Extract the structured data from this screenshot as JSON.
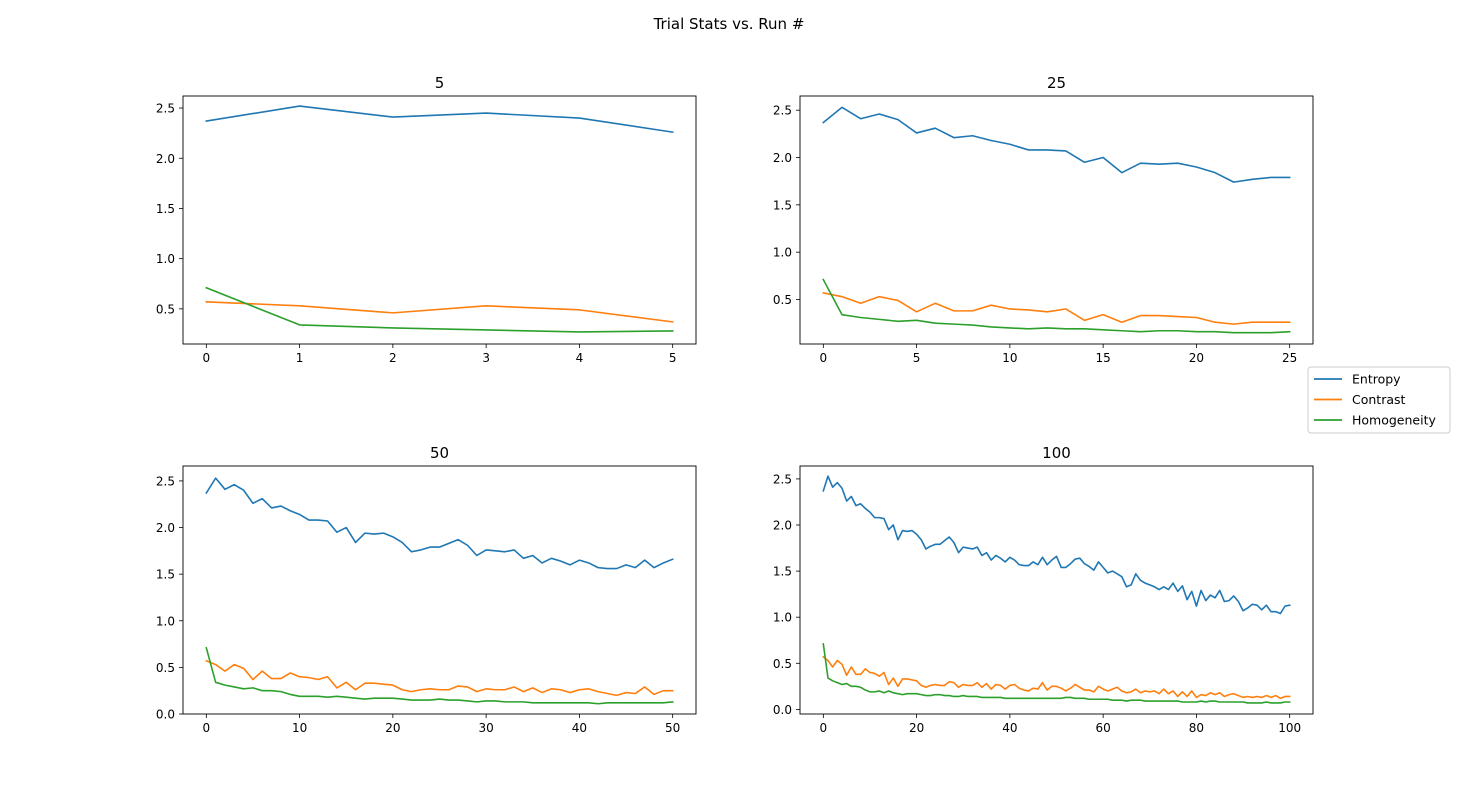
{
  "figure": {
    "suptitle": "Trial Stats vs. Run #"
  },
  "colors": {
    "Entropy": "#1f77b4",
    "Contrast": "#ff7f0e",
    "Homogeneity": "#2ca02c"
  },
  "legend": {
    "placement": "right-center",
    "entries": [
      "Entropy",
      "Contrast",
      "Homogeneity"
    ]
  },
  "chart_data": [
    {
      "type": "line",
      "title": "5",
      "xlabel": "",
      "ylabel": "",
      "xlim": [
        -0.25,
        5.25
      ],
      "ylim": [
        0.15,
        2.62
      ],
      "xticks": [
        0,
        1,
        2,
        3,
        4,
        5
      ],
      "yticks": [
        0.5,
        1.0,
        1.5,
        2.0,
        2.5
      ],
      "x": [
        0,
        1,
        2,
        3,
        4,
        5
      ],
      "series": [
        {
          "name": "Entropy",
          "values": [
            2.37,
            2.52,
            2.41,
            2.45,
            2.4,
            2.26
          ]
        },
        {
          "name": "Contrast",
          "values": [
            0.57,
            0.53,
            0.46,
            0.53,
            0.49,
            0.37
          ]
        },
        {
          "name": "Homogeneity",
          "values": [
            0.71,
            0.34,
            0.31,
            0.29,
            0.27,
            0.28
          ]
        }
      ]
    },
    {
      "type": "line",
      "title": "25",
      "xlabel": "",
      "ylabel": "",
      "xlim": [
        -1.25,
        26.25
      ],
      "ylim": [
        0.03,
        2.65
      ],
      "xticks": [
        0,
        5,
        10,
        15,
        20,
        25
      ],
      "yticks": [
        0.5,
        1.0,
        1.5,
        2.0,
        2.5
      ],
      "x": [
        0,
        1,
        2,
        3,
        4,
        5,
        6,
        7,
        8,
        9,
        10,
        11,
        12,
        13,
        14,
        15,
        16,
        17,
        18,
        19,
        20,
        21,
        22,
        23,
        24,
        25
      ],
      "series": [
        {
          "name": "Entropy",
          "values": [
            2.37,
            2.53,
            2.41,
            2.46,
            2.4,
            2.26,
            2.31,
            2.21,
            2.23,
            2.18,
            2.14,
            2.08,
            2.08,
            2.07,
            1.95,
            2.0,
            1.84,
            1.94,
            1.93,
            1.94,
            1.9,
            1.84,
            1.74,
            1.77,
            1.79,
            1.79
          ]
        },
        {
          "name": "Contrast",
          "values": [
            0.57,
            0.53,
            0.46,
            0.53,
            0.49,
            0.37,
            0.46,
            0.38,
            0.38,
            0.44,
            0.4,
            0.39,
            0.37,
            0.4,
            0.28,
            0.34,
            0.26,
            0.33,
            0.33,
            0.32,
            0.31,
            0.26,
            0.24,
            0.26,
            0.26,
            0.26
          ]
        },
        {
          "name": "Homogeneity",
          "values": [
            0.71,
            0.34,
            0.31,
            0.29,
            0.27,
            0.28,
            0.25,
            0.24,
            0.23,
            0.21,
            0.2,
            0.19,
            0.2,
            0.19,
            0.19,
            0.18,
            0.17,
            0.16,
            0.17,
            0.17,
            0.16,
            0.16,
            0.15,
            0.15,
            0.15,
            0.16
          ]
        }
      ]
    },
    {
      "type": "line",
      "title": "50",
      "xlabel": "",
      "ylabel": "",
      "xlim": [
        -2.5,
        52.5
      ],
      "ylim": [
        0.0,
        2.66
      ],
      "xticks": [
        0,
        10,
        20,
        30,
        40,
        50
      ],
      "yticks": [
        0.0,
        0.5,
        1.0,
        1.5,
        2.0,
        2.5
      ],
      "x": [
        0,
        1,
        2,
        3,
        4,
        5,
        6,
        7,
        8,
        9,
        10,
        11,
        12,
        13,
        14,
        15,
        16,
        17,
        18,
        19,
        20,
        21,
        22,
        23,
        24,
        25,
        26,
        27,
        28,
        29,
        30,
        31,
        32,
        33,
        34,
        35,
        36,
        37,
        38,
        39,
        40,
        41,
        42,
        43,
        44,
        45,
        46,
        47,
        48,
        49,
        50
      ],
      "series": [
        {
          "name": "Entropy",
          "values": [
            2.37,
            2.53,
            2.41,
            2.46,
            2.4,
            2.26,
            2.31,
            2.21,
            2.23,
            2.18,
            2.14,
            2.08,
            2.08,
            2.07,
            1.95,
            2.0,
            1.84,
            1.94,
            1.93,
            1.94,
            1.9,
            1.84,
            1.74,
            1.76,
            1.79,
            1.79,
            1.83,
            1.87,
            1.81,
            1.7,
            1.76,
            1.75,
            1.74,
            1.76,
            1.67,
            1.7,
            1.62,
            1.67,
            1.64,
            1.6,
            1.65,
            1.62,
            1.57,
            1.56,
            1.56,
            1.6,
            1.57,
            1.65,
            1.57,
            1.62,
            1.66
          ]
        },
        {
          "name": "Contrast",
          "values": [
            0.57,
            0.53,
            0.46,
            0.53,
            0.49,
            0.37,
            0.46,
            0.38,
            0.38,
            0.44,
            0.4,
            0.39,
            0.37,
            0.4,
            0.28,
            0.34,
            0.26,
            0.33,
            0.33,
            0.32,
            0.31,
            0.26,
            0.24,
            0.26,
            0.27,
            0.26,
            0.26,
            0.3,
            0.29,
            0.24,
            0.27,
            0.26,
            0.26,
            0.29,
            0.24,
            0.28,
            0.23,
            0.27,
            0.26,
            0.23,
            0.26,
            0.27,
            0.24,
            0.22,
            0.2,
            0.23,
            0.22,
            0.29,
            0.21,
            0.25,
            0.25
          ]
        },
        {
          "name": "Homogeneity",
          "values": [
            0.71,
            0.34,
            0.31,
            0.29,
            0.27,
            0.28,
            0.25,
            0.25,
            0.24,
            0.21,
            0.19,
            0.19,
            0.19,
            0.18,
            0.19,
            0.18,
            0.17,
            0.16,
            0.17,
            0.17,
            0.17,
            0.16,
            0.15,
            0.15,
            0.15,
            0.16,
            0.15,
            0.15,
            0.14,
            0.13,
            0.14,
            0.14,
            0.13,
            0.13,
            0.13,
            0.12,
            0.12,
            0.12,
            0.12,
            0.12,
            0.12,
            0.12,
            0.11,
            0.12,
            0.12,
            0.12,
            0.12,
            0.12,
            0.12,
            0.12,
            0.13
          ]
        }
      ]
    },
    {
      "type": "line",
      "title": "100",
      "xlabel": "",
      "ylabel": "",
      "xlim": [
        -5,
        105
      ],
      "ylim": [
        -0.05,
        2.64
      ],
      "xticks": [
        0,
        20,
        40,
        60,
        80,
        100
      ],
      "yticks": [
        0.0,
        0.5,
        1.0,
        1.5,
        2.0,
        2.5
      ],
      "x": [
        0,
        1,
        2,
        3,
        4,
        5,
        6,
        7,
        8,
        9,
        10,
        11,
        12,
        13,
        14,
        15,
        16,
        17,
        18,
        19,
        20,
        21,
        22,
        23,
        24,
        25,
        26,
        27,
        28,
        29,
        30,
        31,
        32,
        33,
        34,
        35,
        36,
        37,
        38,
        39,
        40,
        41,
        42,
        43,
        44,
        45,
        46,
        47,
        48,
        49,
        50,
        51,
        52,
        53,
        54,
        55,
        56,
        57,
        58,
        59,
        60,
        61,
        62,
        63,
        64,
        65,
        66,
        67,
        68,
        69,
        70,
        71,
        72,
        73,
        74,
        75,
        76,
        77,
        78,
        79,
        80,
        81,
        82,
        83,
        84,
        85,
        86,
        87,
        88,
        89,
        90,
        91,
        92,
        93,
        94,
        95,
        96,
        97,
        98,
        99,
        100
      ],
      "series": [
        {
          "name": "Entropy",
          "values": [
            2.37,
            2.53,
            2.41,
            2.46,
            2.4,
            2.26,
            2.31,
            2.21,
            2.23,
            2.18,
            2.14,
            2.08,
            2.08,
            2.07,
            1.95,
            2.0,
            1.84,
            1.94,
            1.93,
            1.94,
            1.9,
            1.84,
            1.74,
            1.77,
            1.79,
            1.79,
            1.83,
            1.87,
            1.81,
            1.7,
            1.76,
            1.75,
            1.74,
            1.76,
            1.67,
            1.7,
            1.62,
            1.67,
            1.64,
            1.6,
            1.65,
            1.62,
            1.57,
            1.56,
            1.56,
            1.6,
            1.57,
            1.65,
            1.57,
            1.62,
            1.66,
            1.54,
            1.54,
            1.58,
            1.63,
            1.64,
            1.58,
            1.55,
            1.51,
            1.6,
            1.54,
            1.48,
            1.5,
            1.47,
            1.44,
            1.33,
            1.35,
            1.47,
            1.4,
            1.37,
            1.35,
            1.33,
            1.3,
            1.33,
            1.3,
            1.37,
            1.28,
            1.34,
            1.19,
            1.28,
            1.12,
            1.29,
            1.18,
            1.24,
            1.21,
            1.29,
            1.17,
            1.18,
            1.23,
            1.17,
            1.07,
            1.1,
            1.14,
            1.13,
            1.08,
            1.13,
            1.06,
            1.06,
            1.04,
            1.12,
            1.13
          ]
        },
        {
          "name": "Contrast",
          "values": [
            0.57,
            0.53,
            0.46,
            0.53,
            0.49,
            0.37,
            0.46,
            0.38,
            0.38,
            0.44,
            0.4,
            0.39,
            0.36,
            0.4,
            0.27,
            0.34,
            0.25,
            0.33,
            0.33,
            0.32,
            0.31,
            0.26,
            0.24,
            0.26,
            0.27,
            0.26,
            0.26,
            0.3,
            0.29,
            0.24,
            0.27,
            0.26,
            0.26,
            0.29,
            0.24,
            0.28,
            0.22,
            0.27,
            0.26,
            0.22,
            0.26,
            0.27,
            0.23,
            0.21,
            0.2,
            0.23,
            0.22,
            0.29,
            0.21,
            0.25,
            0.25,
            0.23,
            0.2,
            0.23,
            0.27,
            0.24,
            0.21,
            0.21,
            0.19,
            0.25,
            0.22,
            0.2,
            0.22,
            0.24,
            0.2,
            0.18,
            0.19,
            0.22,
            0.18,
            0.2,
            0.19,
            0.2,
            0.17,
            0.22,
            0.17,
            0.2,
            0.14,
            0.19,
            0.14,
            0.2,
            0.13,
            0.16,
            0.15,
            0.18,
            0.16,
            0.18,
            0.14,
            0.16,
            0.17,
            0.15,
            0.13,
            0.14,
            0.13,
            0.14,
            0.13,
            0.15,
            0.13,
            0.15,
            0.12,
            0.14,
            0.14
          ]
        },
        {
          "name": "Homogeneity",
          "values": [
            0.71,
            0.34,
            0.31,
            0.29,
            0.27,
            0.28,
            0.25,
            0.25,
            0.24,
            0.21,
            0.19,
            0.19,
            0.2,
            0.18,
            0.2,
            0.18,
            0.17,
            0.16,
            0.17,
            0.17,
            0.17,
            0.16,
            0.15,
            0.15,
            0.16,
            0.16,
            0.15,
            0.15,
            0.14,
            0.14,
            0.15,
            0.14,
            0.14,
            0.14,
            0.13,
            0.13,
            0.13,
            0.13,
            0.13,
            0.12,
            0.12,
            0.12,
            0.12,
            0.12,
            0.12,
            0.12,
            0.12,
            0.12,
            0.12,
            0.12,
            0.12,
            0.12,
            0.13,
            0.13,
            0.12,
            0.12,
            0.12,
            0.11,
            0.11,
            0.11,
            0.11,
            0.11,
            0.1,
            0.1,
            0.1,
            0.09,
            0.1,
            0.1,
            0.1,
            0.09,
            0.09,
            0.09,
            0.09,
            0.09,
            0.09,
            0.09,
            0.09,
            0.08,
            0.08,
            0.08,
            0.08,
            0.09,
            0.08,
            0.09,
            0.09,
            0.08,
            0.08,
            0.08,
            0.08,
            0.08,
            0.08,
            0.07,
            0.07,
            0.07,
            0.07,
            0.08,
            0.07,
            0.07,
            0.07,
            0.08,
            0.08
          ]
        }
      ]
    }
  ]
}
